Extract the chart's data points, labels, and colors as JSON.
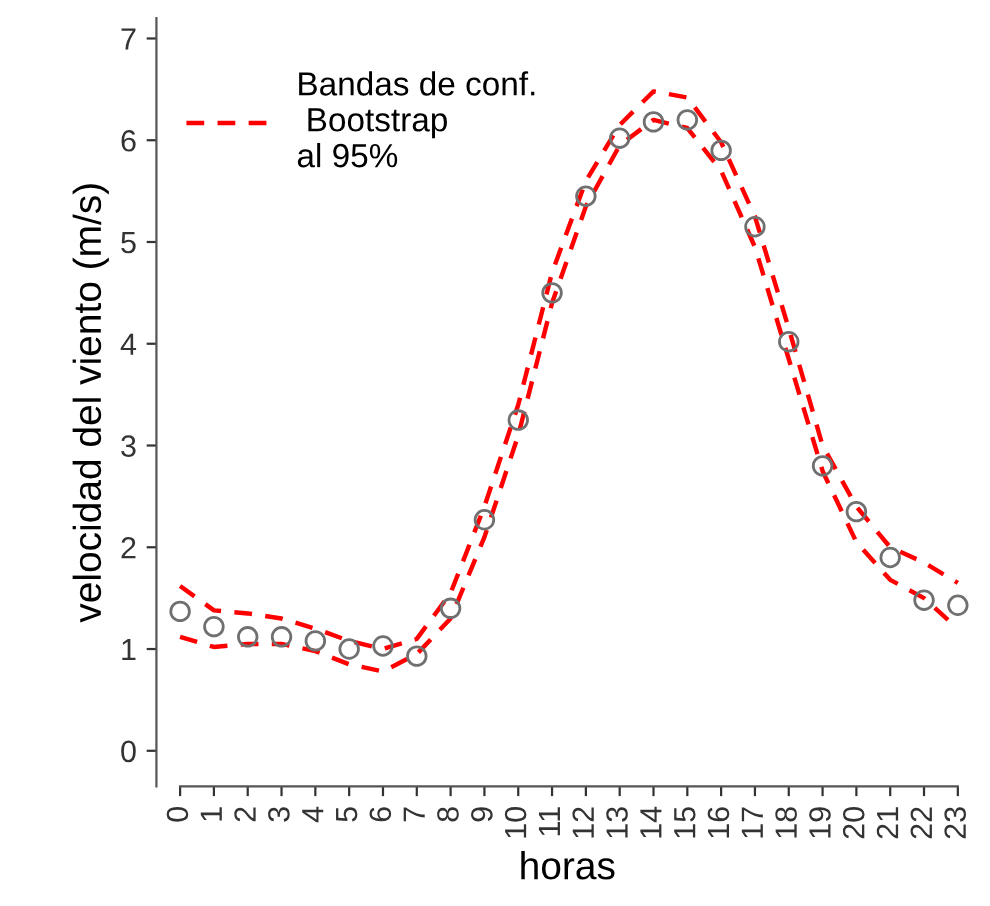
{
  "chart_data": {
    "type": "scatter",
    "xlabel": "horas",
    "ylabel": "velocidad del viento (m/s)",
    "categories": [
      "0",
      "1",
      "2",
      "3",
      "4",
      "5",
      "6",
      "7",
      "8",
      "9",
      "10",
      "11",
      "12",
      "13",
      "14",
      "15",
      "16",
      "17",
      "18",
      "19",
      "20",
      "21",
      "22",
      "23"
    ],
    "ylim": [
      -0.35,
      7.2
    ],
    "yticks": [
      0,
      1,
      2,
      3,
      4,
      5,
      6,
      7
    ],
    "legend": "top left",
    "series": [
      {
        "marker": "circle",
        "color": "#707070",
        "values": [
          1.37,
          1.22,
          1.12,
          1.12,
          1.08,
          1.0,
          1.03,
          0.93,
          1.4,
          2.27,
          3.25,
          4.5,
          5.45,
          6.02,
          6.18,
          6.2,
          5.9,
          5.15,
          4.02,
          2.8,
          2.35,
          1.9,
          1.48,
          1.43
        ]
      },
      {
        "type": "line",
        "name": "Bandas de conf.\n Bootstrap\nal 95%",
        "color": "#ff0000",
        "line_style": "dashed",
        "values": [
          1.62,
          1.38,
          1.35,
          1.3,
          1.2,
          1.08,
          1.0,
          1.1,
          1.55,
          2.4,
          3.4,
          4.7,
          5.6,
          6.15,
          6.48,
          6.42,
          5.98,
          5.25,
          4.15,
          3.0,
          2.4,
          2.0,
          1.85,
          1.65
        ]
      },
      {
        "type": "line",
        "color": "#ff0000",
        "line_style": "dashed",
        "values": [
          1.12,
          1.02,
          1.05,
          1.05,
          0.98,
          0.85,
          0.78,
          0.95,
          1.3,
          2.1,
          3.1,
          4.4,
          5.35,
          5.95,
          6.2,
          6.12,
          5.7,
          4.95,
          3.85,
          2.75,
          2.05,
          1.68,
          1.5,
          1.2
        ]
      }
    ]
  }
}
